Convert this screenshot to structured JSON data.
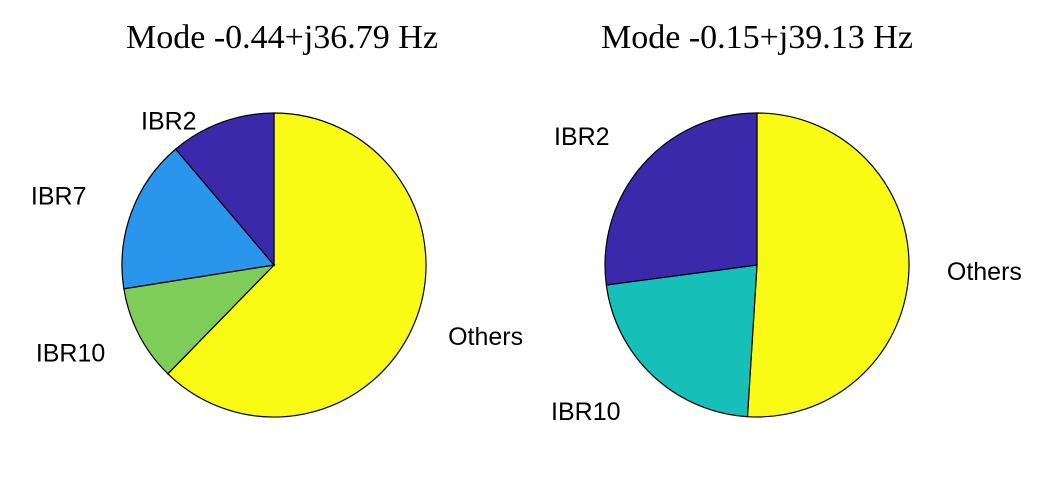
{
  "chart_data": [
    {
      "type": "pie",
      "title": "Mode -0.44+j36.79 Hz",
      "slices": [
        {
          "label": "Others",
          "value": 62.3,
          "color": "#f9fb15"
        },
        {
          "label": "IBR10",
          "value": 10.2,
          "color": "#7ecd58"
        },
        {
          "label": "IBR7",
          "value": 16.3,
          "color": "#2a95ec"
        },
        {
          "label": "IBR2",
          "value": 11.2,
          "color": "#3c28ab"
        }
      ]
    },
    {
      "type": "pie",
      "title": "Mode -0.15+j39.13 Hz",
      "slices": [
        {
          "label": "Others",
          "value": 51.0,
          "color": "#f9fb15"
        },
        {
          "label": "IBR10",
          "value": 21.9,
          "color": "#16bfb7"
        },
        {
          "label": "IBR2",
          "value": 27.1,
          "color": "#3c28ab"
        }
      ]
    }
  ]
}
